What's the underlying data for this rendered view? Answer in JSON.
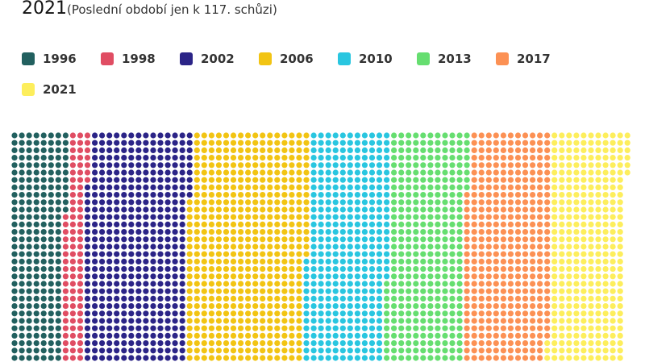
{
  "header": {
    "year": "2021",
    "subtitle": "(Poslední období jen k 117. schůzi)"
  },
  "legend": [
    {
      "label": "1996",
      "color": "#22605f"
    },
    {
      "label": "1998",
      "color": "#e04d63"
    },
    {
      "label": "2002",
      "color": "#2b2487"
    },
    {
      "label": "2006",
      "color": "#f2c413"
    },
    {
      "label": "2010",
      "color": "#29c6e0"
    },
    {
      "label": "2013",
      "color": "#66de70"
    },
    {
      "label": "2017",
      "color": "#fc9154"
    },
    {
      "label": "2021",
      "color": "#fdee5c"
    }
  ],
  "chart_data": {
    "type": "waffle",
    "title": "2021 (Poslední období jen k 117. schůzi)",
    "layout": {
      "rows": 32,
      "fill_order": "column-major, top-to-bottom",
      "visible_rows_clipped": true
    },
    "categories": [
      "1996",
      "1998",
      "2002",
      "2006",
      "2010",
      "2013",
      "2017",
      "2021"
    ],
    "values": [
      235,
      92,
      450,
      520,
      355,
      340,
      372,
      330
    ],
    "colors": [
      "#22605f",
      "#e04d63",
      "#2b2487",
      "#f2c413",
      "#29c6e0",
      "#66de70",
      "#fc9154",
      "#fdee5c"
    ],
    "legend_position": "top"
  }
}
